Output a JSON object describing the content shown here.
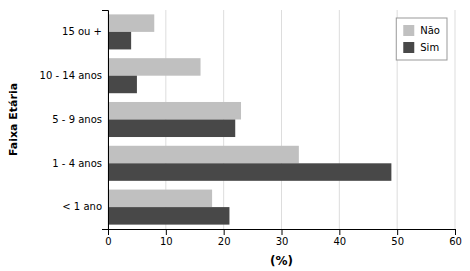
{
  "chart_data": {
    "type": "bar",
    "orientation": "horizontal",
    "categories": [
      "< 1 ano",
      "1 - 4 anos",
      "5 - 9 anos",
      "10 - 14 anos",
      "15 ou +"
    ],
    "series": [
      {
        "name": "Não",
        "color": "#c0c0c0",
        "values": [
          18,
          33,
          23,
          16,
          8
        ]
      },
      {
        "name": "Sim",
        "color": "#484848",
        "values": [
          21,
          49,
          22,
          5,
          4
        ]
      }
    ],
    "xlabel": "(%)",
    "ylabel": "Faixa Etária",
    "xlim": [
      0,
      60
    ],
    "xticks": [
      0,
      10,
      20,
      30,
      40,
      50,
      60
    ],
    "grid": true,
    "legend": "upper right"
  }
}
